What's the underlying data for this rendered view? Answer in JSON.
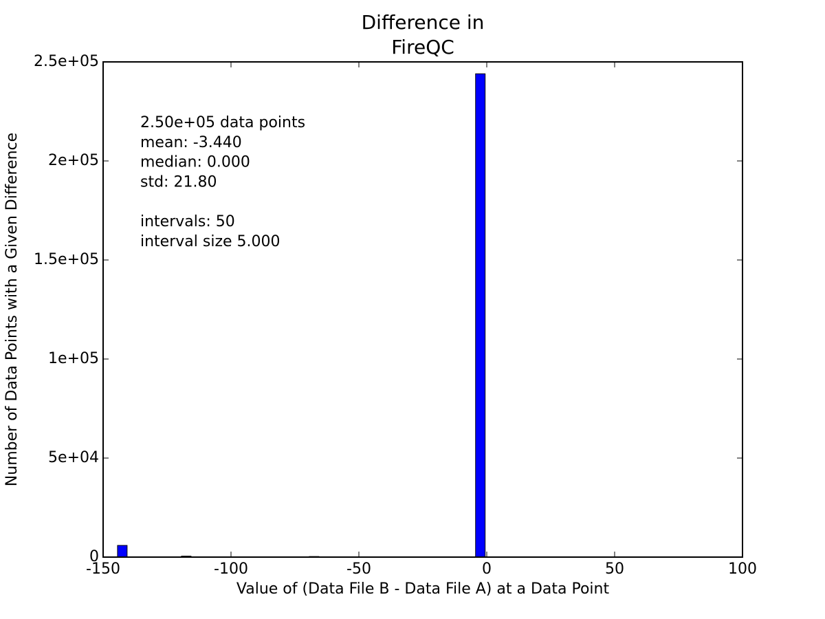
{
  "chart_data": {
    "type": "histogram",
    "title": [
      "Difference in",
      "FireQC"
    ],
    "x_label": "Value of (Data File B - Data File A) at a Data Point",
    "y_label": "Number of Data Points with a Given Difference",
    "annotation": [
      "2.50e+05 data points",
      "mean: -3.440",
      "median: 0.000",
      "std: 21.80",
      "intervals: 50",
      "interval size 5.000"
    ],
    "bins": [
      -145,
      -140,
      -135,
      -130,
      -125,
      -120,
      -115,
      -110,
      -105,
      -100,
      -95,
      -90,
      -85,
      -80,
      -75,
      -70,
      -65,
      -60,
      -55,
      -50,
      -45,
      -40,
      -35,
      -30,
      -25,
      -20,
      -15,
      -10,
      -5,
      0,
      5,
      10,
      15,
      20,
      25,
      30,
      35,
      40,
      45,
      50,
      55,
      60,
      65,
      70,
      75,
      80,
      85,
      90,
      95,
      100,
      105
    ],
    "values": [
      5900,
      0,
      0,
      0,
      0,
      500,
      0,
      0,
      0,
      0,
      0,
      0,
      0,
      0,
      0,
      300,
      0,
      0,
      0,
      0,
      0,
      0,
      0,
      0,
      0,
      0,
      0,
      0,
      244000,
      0,
      0,
      0,
      0,
      0,
      0,
      0,
      0,
      0,
      0,
      0,
      0,
      0,
      0,
      0,
      0,
      0,
      0,
      0,
      0,
      0
    ],
    "color": "#0000ff",
    "xlim": [
      -150,
      100
    ],
    "xticks": [
      -150,
      -100,
      -50,
      0,
      50,
      100
    ],
    "ylim": [
      0,
      250000
    ],
    "yticks": [
      0,
      {
        "value": 50000,
        "label": "5e+04"
      },
      {
        "value": 100000,
        "label": "1e+05"
      },
      {
        "value": 150000,
        "label": "1.5e+05"
      },
      {
        "value": 200000,
        "label": "2e+05"
      },
      {
        "value": 250000,
        "label": "2.5e+05"
      }
    ]
  }
}
